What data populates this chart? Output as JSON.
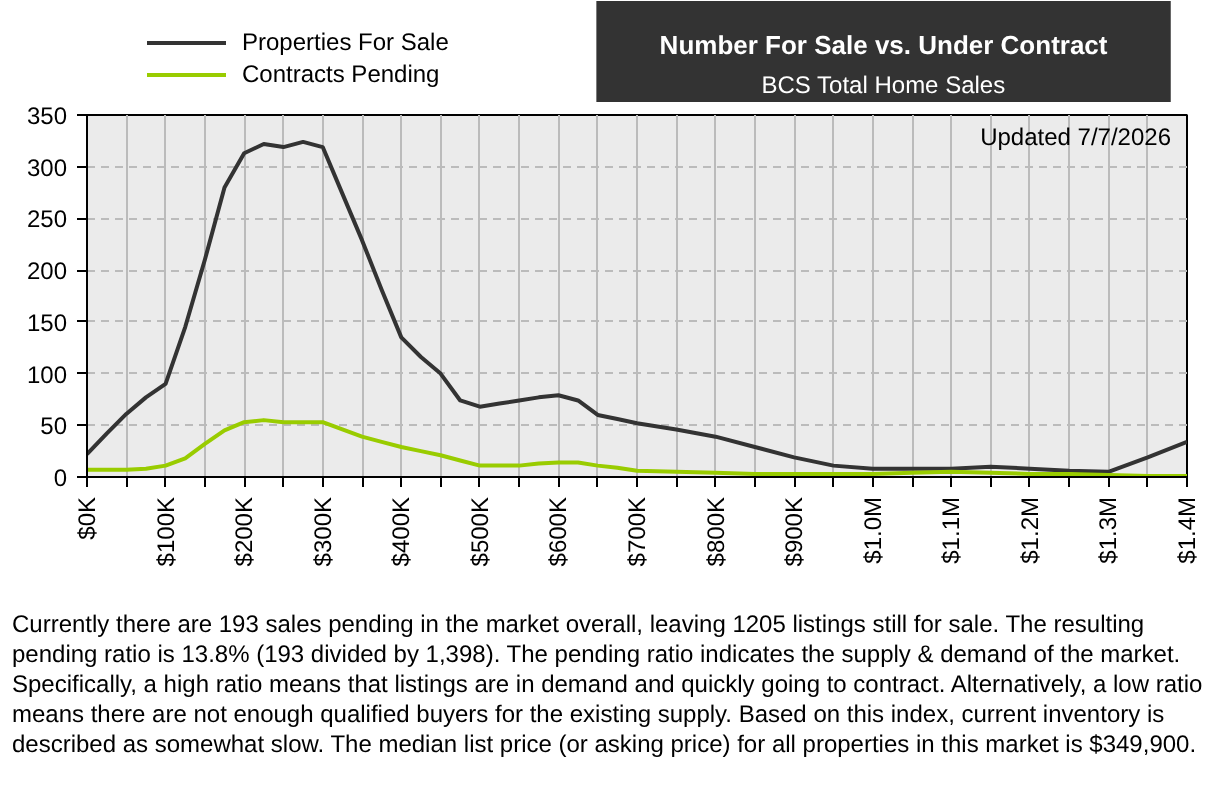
{
  "chart_data": {
    "type": "line",
    "title": "Number For Sale vs. Under Contract",
    "subtitle": "BCS Total Home Sales",
    "x": [
      0,
      25000,
      50000,
      75000,
      100000,
      125000,
      150000,
      175000,
      200000,
      225000,
      250000,
      275000,
      300000,
      325000,
      350000,
      375000,
      400000,
      425000,
      450000,
      475000,
      500000,
      525000,
      550000,
      575000,
      600000,
      625000,
      650000,
      675000,
      700000,
      750000,
      800000,
      850000,
      900000,
      950000,
      1000000,
      1050000,
      1100000,
      1150000,
      1200000,
      1250000,
      1300000,
      1350000,
      1400000
    ],
    "series": [
      {
        "name": "Properties For Sale",
        "color": "#333333",
        "values": [
          22,
          42,
          61,
          77,
          90,
          145,
          210,
          280,
          313,
          322,
          319,
          324,
          319,
          274,
          229,
          181,
          135,
          116,
          100,
          74,
          68,
          71,
          74,
          77,
          79,
          74,
          60,
          56,
          52,
          46,
          39,
          29,
          19,
          11,
          8,
          8,
          8,
          10,
          8,
          6,
          5,
          19,
          34
        ]
      },
      {
        "name": "Contracts Pending",
        "color": "#99cc00",
        "values": [
          7,
          7,
          7,
          8,
          11,
          18,
          32,
          45,
          53,
          55,
          53,
          53,
          53,
          46,
          39,
          34,
          29,
          25,
          21,
          16,
          11,
          11,
          11,
          13,
          14,
          14,
          11,
          9,
          6,
          5,
          4,
          3,
          3,
          3,
          3,
          4,
          5,
          4,
          3,
          3,
          2,
          1,
          1
        ]
      }
    ],
    "xlim": [
      0,
      1400000
    ],
    "xticks": [
      {
        "value": 0,
        "label": "$0K"
      },
      {
        "value": 50000,
        "label": null
      },
      {
        "value": 100000,
        "label": "$100K"
      },
      {
        "value": 150000,
        "label": null
      },
      {
        "value": 200000,
        "label": "$200K"
      },
      {
        "value": 250000,
        "label": null
      },
      {
        "value": 300000,
        "label": "$300K"
      },
      {
        "value": 350000,
        "label": null
      },
      {
        "value": 400000,
        "label": "$400K"
      },
      {
        "value": 450000,
        "label": null
      },
      {
        "value": 500000,
        "label": "$500K"
      },
      {
        "value": 550000,
        "label": null
      },
      {
        "value": 600000,
        "label": "$600K"
      },
      {
        "value": 650000,
        "label": null
      },
      {
        "value": 700000,
        "label": "$700K"
      },
      {
        "value": 750000,
        "label": null
      },
      {
        "value": 800000,
        "label": "$800K"
      },
      {
        "value": 850000,
        "label": null
      },
      {
        "value": 900000,
        "label": "$900K"
      },
      {
        "value": 950000,
        "label": null
      },
      {
        "value": 1000000,
        "label": "$1.0M"
      },
      {
        "value": 1050000,
        "label": null
      },
      {
        "value": 1100000,
        "label": "$1.1M"
      },
      {
        "value": 1150000,
        "label": null
      },
      {
        "value": 1200000,
        "label": "$1.2M"
      },
      {
        "value": 1250000,
        "label": null
      },
      {
        "value": 1300000,
        "label": "$1.3M"
      },
      {
        "value": 1350000,
        "label": null
      },
      {
        "value": 1400000,
        "label": "$1.4M"
      }
    ],
    "ylim": [
      0,
      350
    ],
    "yticks": [
      0,
      50,
      100,
      150,
      200,
      250,
      300,
      350
    ],
    "grid": true,
    "legend": "top left",
    "marker": "none",
    "line_style": "solid",
    "annotations": [
      "Updated 7/7/2026",
      "Currently there are 193 sales pending in the market overall, leaving 1205 listings still for sale.  The resulting pending ratio is 13.8% (193 divided by 1,398).  The pending ratio indicates the supply & demand of the market.  Specifically, a high ratio means that listings are in demand and quickly going to contract.  Alternatively, a low ratio means there are not enough qualified buyers for the existing supply.  Based on this index, current inventory is described as somewhat slow.  The median list price (or asking price) for all properties in this market is $349,900."
    ]
  }
}
